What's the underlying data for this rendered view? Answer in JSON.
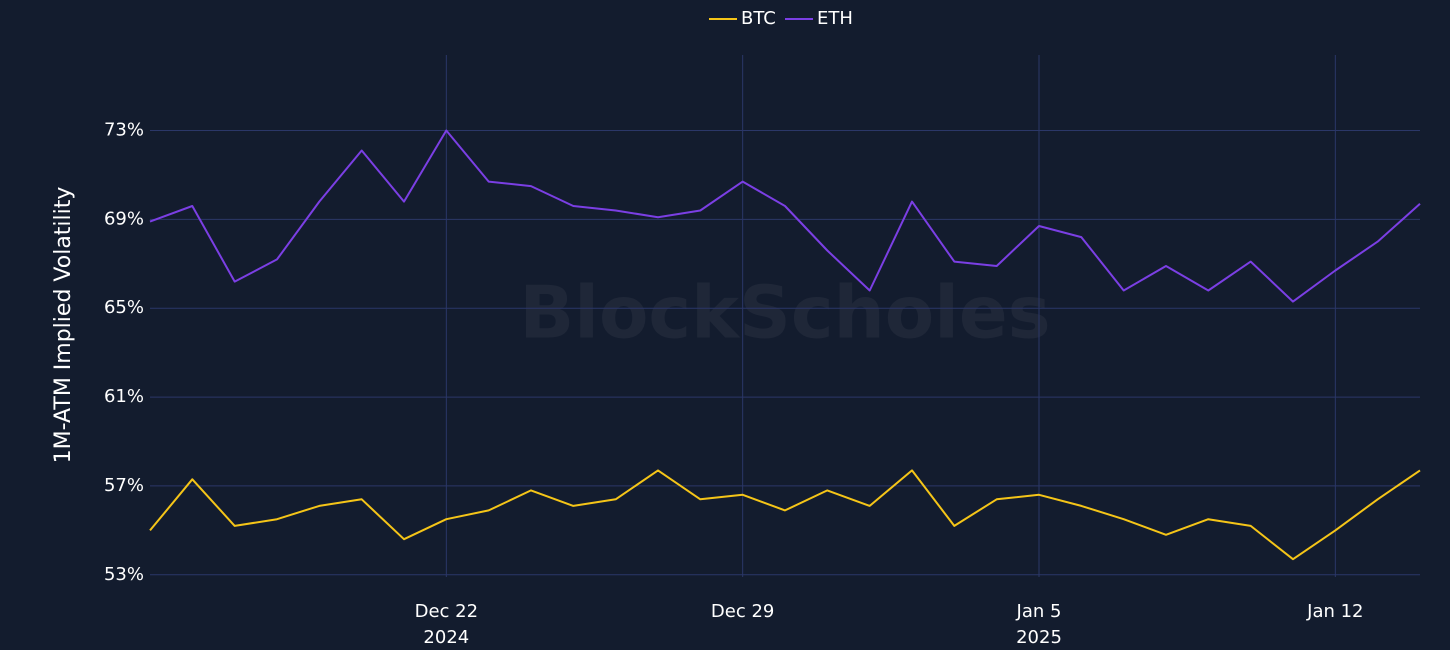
{
  "chart_data": {
    "type": "line",
    "watermark": "BlockScholes",
    "y_label": "1M-ATM Implied Volatility",
    "x": [
      "2024-12-15",
      "2024-12-16",
      "2024-12-17",
      "2024-12-18",
      "2024-12-19",
      "2024-12-20",
      "2024-12-21",
      "2024-12-22",
      "2024-12-23",
      "2024-12-24",
      "2024-12-25",
      "2024-12-26",
      "2024-12-27",
      "2024-12-28",
      "2024-12-29",
      "2024-12-30",
      "2024-12-31",
      "2025-01-01",
      "2025-01-02",
      "2025-01-03",
      "2025-01-04",
      "2025-01-05",
      "2025-01-06",
      "2025-01-07",
      "2025-01-08",
      "2025-01-09",
      "2025-01-10",
      "2025-01-11",
      "2025-01-12",
      "2025-01-13",
      "2025-01-14"
    ],
    "series": [
      {
        "name": "BTC",
        "color": "#f5c518",
        "values": [
          55.0,
          57.3,
          55.2,
          55.5,
          56.1,
          56.4,
          54.6,
          55.5,
          55.9,
          56.8,
          56.1,
          56.4,
          57.7,
          56.4,
          56.6,
          55.9,
          56.8,
          56.1,
          57.7,
          55.2,
          56.4,
          56.6,
          56.1,
          55.5,
          54.8,
          55.5,
          55.2,
          53.7,
          55.0,
          56.4,
          57.7
        ]
      },
      {
        "name": "ETH",
        "color": "#7b3fe4",
        "values": [
          68.9,
          69.6,
          66.2,
          67.2,
          69.8,
          72.1,
          69.8,
          73.0,
          70.7,
          70.5,
          69.6,
          69.4,
          69.1,
          69.4,
          70.7,
          69.6,
          67.6,
          65.8,
          69.8,
          67.1,
          66.9,
          68.7,
          68.2,
          65.8,
          66.9,
          65.8,
          67.1,
          65.3,
          66.7,
          68.0,
          69.7
        ]
      }
    ],
    "xlim": [
      "2024-12-15",
      "2025-01-14"
    ],
    "xticks": [
      {
        "value": "2024-12-22",
        "label": "Dec 22",
        "sublabel": "2024"
      },
      {
        "value": "2024-12-29",
        "label": "Dec 29"
      },
      {
        "value": "2025-01-05",
        "label": "Jan 5",
        "sublabel": "2025"
      },
      {
        "value": "2025-01-12",
        "label": "Jan 12"
      }
    ],
    "ylim": [
      52.9,
      76.4
    ],
    "yticks": [
      {
        "value": 53,
        "label": "53%"
      },
      {
        "value": 57,
        "label": "57%"
      },
      {
        "value": 61,
        "label": "61%"
      },
      {
        "value": 65,
        "label": "65%"
      },
      {
        "value": 69,
        "label": "69%"
      },
      {
        "value": 73,
        "label": "73%"
      }
    ],
    "grid": true,
    "legend": "top"
  }
}
